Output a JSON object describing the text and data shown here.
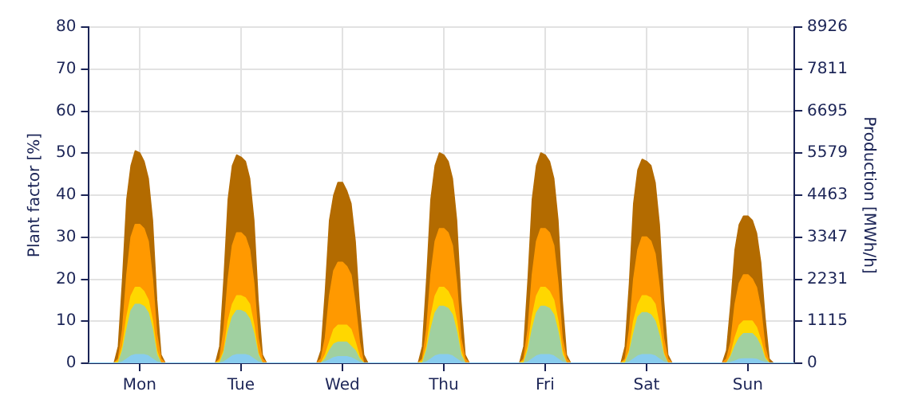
{
  "chart_data": {
    "type": "area",
    "ylabel": "Plant factor [%]",
    "y2label": "Production [MWh/h]",
    "categories": [
      null,
      null,
      null,
      null,
      null,
      null,
      null,
      null,
      null,
      null,
      null,
      null,
      "Mon",
      null,
      null,
      null,
      null,
      null,
      null,
      null,
      null,
      null,
      null,
      null,
      null,
      null,
      null,
      null,
      null,
      null,
      null,
      null,
      null,
      null,
      null,
      null,
      "Tue",
      null,
      null,
      null,
      null,
      null,
      null,
      null,
      null,
      null,
      null,
      null,
      null,
      null,
      null,
      null,
      null,
      null,
      null,
      null,
      null,
      null,
      null,
      null,
      "Wed",
      null,
      null,
      null,
      null,
      null,
      null,
      null,
      null,
      null,
      null,
      null,
      null,
      null,
      null,
      null,
      null,
      null,
      null,
      null,
      null,
      null,
      null,
      null,
      "Thu",
      null,
      null,
      null,
      null,
      null,
      null,
      null,
      null,
      null,
      null,
      null,
      null,
      null,
      null,
      null,
      null,
      null,
      null,
      null,
      null,
      null,
      null,
      null,
      "Fri",
      null,
      null,
      null,
      null,
      null,
      null,
      null,
      null,
      null,
      null,
      null,
      null,
      null,
      null,
      null,
      null,
      null,
      null,
      null,
      null,
      null,
      null,
      null,
      "Sat",
      null,
      null,
      null,
      null,
      null,
      null,
      null,
      null,
      null,
      null,
      null,
      null,
      null,
      null,
      null,
      null,
      null,
      null,
      null,
      null,
      null,
      null,
      null,
      "Sun",
      null,
      null,
      null,
      null,
      null,
      null,
      null,
      null,
      null,
      null,
      null
    ],
    "series": [
      {
        "color": "#b36b00",
        "values": [
          0,
          0,
          0,
          0,
          0,
          0,
          0,
          4,
          20,
          39,
          47,
          50.5,
          50,
          48,
          44,
          34,
          15,
          2,
          0,
          0,
          0,
          0,
          0,
          0,
          0,
          0,
          0,
          0,
          0,
          0,
          0,
          4,
          20,
          39,
          47,
          49.5,
          49,
          48,
          44,
          34,
          15,
          2,
          0,
          0,
          0,
          0,
          0,
          0,
          0,
          0,
          0,
          0,
          0,
          0,
          0,
          3,
          17,
          34,
          40,
          43,
          43,
          41,
          38,
          29,
          13,
          2,
          0,
          0,
          0,
          0,
          0,
          0,
          0,
          0,
          0,
          0,
          0,
          0,
          0,
          4,
          20,
          39,
          47,
          50,
          49.5,
          48,
          44,
          34,
          15,
          2,
          0,
          0,
          0,
          0,
          0,
          0,
          0,
          0,
          0,
          0,
          0,
          0,
          0,
          4,
          20,
          39,
          47,
          50,
          49.5,
          48,
          44,
          34,
          15,
          2,
          0,
          0,
          0,
          0,
          0,
          0,
          0,
          0,
          0,
          0,
          0,
          0,
          0,
          4,
          19,
          38,
          46,
          48.5,
          48,
          47,
          43,
          33,
          15,
          2,
          0,
          0,
          0,
          0,
          0,
          0,
          0,
          0,
          0,
          0,
          0,
          0,
          0,
          3,
          14,
          27,
          33,
          35,
          35,
          34,
          31,
          24,
          11,
          1,
          0,
          0,
          0,
          0,
          0,
          0
        ]
      },
      {
        "color": "#ff9900",
        "values": [
          0,
          0,
          0,
          0,
          0,
          0,
          0,
          1,
          8,
          21,
          30,
          33,
          33,
          32,
          29,
          20,
          7,
          1,
          0,
          0,
          0,
          0,
          0,
          0,
          0,
          0,
          0,
          0,
          0,
          0,
          0,
          1,
          8,
          20,
          28,
          31,
          31,
          30,
          27,
          19,
          6,
          1,
          0,
          0,
          0,
          0,
          0,
          0,
          0,
          0,
          0,
          0,
          0,
          0,
          0,
          1,
          6,
          16,
          22,
          24,
          24,
          23,
          21,
          14,
          5,
          0,
          0,
          0,
          0,
          0,
          0,
          0,
          0,
          0,
          0,
          0,
          0,
          0,
          0,
          1,
          8,
          21,
          29,
          32,
          32,
          31,
          28,
          19,
          6,
          1,
          0,
          0,
          0,
          0,
          0,
          0,
          0,
          0,
          0,
          0,
          0,
          0,
          0,
          1,
          8,
          21,
          29,
          32,
          32,
          31,
          28,
          19,
          6,
          1,
          0,
          0,
          0,
          0,
          0,
          0,
          0,
          0,
          0,
          0,
          0,
          0,
          0,
          1,
          8,
          20,
          27,
          30,
          30,
          29,
          26,
          18,
          6,
          1,
          0,
          0,
          0,
          0,
          0,
          0,
          0,
          0,
          0,
          0,
          0,
          0,
          0,
          1,
          5,
          14,
          19,
          21,
          21,
          20,
          18,
          13,
          4,
          0,
          0,
          0,
          0,
          0,
          0,
          0
        ]
      },
      {
        "color": "#ffd700",
        "values": [
          0,
          0,
          0,
          0,
          0,
          0,
          0,
          0.5,
          4,
          11,
          16,
          18,
          18,
          17,
          15,
          10,
          3,
          0,
          0,
          0,
          0,
          0,
          0,
          0,
          0,
          0,
          0,
          0,
          0,
          0,
          0,
          0.5,
          3,
          10,
          14,
          16,
          16,
          15.5,
          14,
          9,
          2.5,
          0,
          0,
          0,
          0,
          0,
          0,
          0,
          0,
          0,
          0,
          0,
          0,
          0,
          0,
          0,
          2,
          5,
          8,
          9,
          9,
          9,
          8,
          5,
          1.5,
          0,
          0,
          0,
          0,
          0,
          0,
          0,
          0,
          0,
          0,
          0,
          0,
          0,
          0,
          0.5,
          4,
          11,
          16,
          18,
          18,
          17,
          15,
          10,
          3,
          0,
          0,
          0,
          0,
          0,
          0,
          0,
          0,
          0,
          0,
          0,
          0,
          0,
          0,
          0.5,
          4,
          11,
          16,
          18,
          18,
          17,
          15,
          10,
          3,
          0,
          0,
          0,
          0,
          0,
          0,
          0,
          0,
          0,
          0,
          0,
          0,
          0,
          0,
          0.5,
          3,
          10,
          14,
          16,
          16,
          15.5,
          14,
          9,
          2.5,
          0,
          0,
          0,
          0,
          0,
          0,
          0,
          0,
          0,
          0,
          0,
          0,
          0,
          0,
          0,
          2,
          6,
          9,
          10,
          10,
          10,
          8.5,
          5.5,
          1.5,
          0,
          0,
          0,
          0,
          0,
          0,
          0
        ]
      },
      {
        "color": "#a0d0a0",
        "values": [
          0,
          0,
          0,
          0,
          0,
          0,
          0,
          0,
          3,
          8,
          12.5,
          14,
          14,
          13.5,
          12,
          8,
          2,
          0,
          0,
          0,
          0,
          0,
          0,
          0,
          0,
          0,
          0,
          0,
          0,
          0,
          0,
          0,
          2.5,
          7.5,
          11,
          12.5,
          12.5,
          12,
          10.5,
          7,
          2,
          0,
          0,
          0,
          0,
          0,
          0,
          0,
          0,
          0,
          0,
          0,
          0,
          0,
          0,
          0,
          1,
          3,
          4.5,
          5,
          5,
          5,
          4,
          3,
          1,
          0,
          0,
          0,
          0,
          0,
          0,
          0,
          0,
          0,
          0,
          0,
          0,
          0,
          0,
          0,
          3,
          8,
          12,
          13.5,
          13.5,
          13,
          11.5,
          7.5,
          2,
          0,
          0,
          0,
          0,
          0,
          0,
          0,
          0,
          0,
          0,
          0,
          0,
          0,
          0,
          0,
          3,
          8,
          12,
          13.5,
          13.5,
          13,
          11.5,
          7.5,
          2,
          0,
          0,
          0,
          0,
          0,
          0,
          0,
          0,
          0,
          0,
          0,
          0,
          0,
          0,
          0,
          2.5,
          7,
          11,
          12,
          12,
          11.5,
          10,
          6.5,
          2,
          0,
          0,
          0,
          0,
          0,
          0,
          0,
          0,
          0,
          0,
          0,
          0,
          0,
          0,
          0,
          1.5,
          4,
          6,
          7,
          7,
          7,
          6,
          4,
          1,
          0,
          0,
          0,
          0,
          0,
          0,
          0
        ]
      },
      {
        "color": "#88ccee",
        "values": [
          0,
          0,
          0,
          0,
          0,
          0,
          0,
          0,
          0.3,
          1,
          1.7,
          2,
          2,
          2,
          1.7,
          1,
          0.3,
          0,
          0,
          0,
          0,
          0,
          0,
          0,
          0,
          0,
          0,
          0,
          0,
          0,
          0,
          0,
          0.3,
          1,
          1.7,
          2,
          2,
          2,
          1.7,
          1,
          0.3,
          0,
          0,
          0,
          0,
          0,
          0,
          0,
          0,
          0,
          0,
          0,
          0,
          0,
          0,
          0,
          0.3,
          0.8,
          1.3,
          1.5,
          1.5,
          1.5,
          1.3,
          0.8,
          0.2,
          0,
          0,
          0,
          0,
          0,
          0,
          0,
          0,
          0,
          0,
          0,
          0,
          0,
          0,
          0,
          0.3,
          1,
          1.7,
          2,
          2,
          2,
          1.7,
          1,
          0.3,
          0,
          0,
          0,
          0,
          0,
          0,
          0,
          0,
          0,
          0,
          0,
          0,
          0,
          0,
          0,
          0.3,
          1,
          1.7,
          2,
          2,
          2,
          1.7,
          1,
          0.3,
          0,
          0,
          0,
          0,
          0,
          0,
          0,
          0,
          0,
          0,
          0,
          0,
          0,
          0,
          0,
          0.3,
          1,
          1.7,
          2,
          2,
          2,
          1.7,
          1,
          0.3,
          0,
          0,
          0,
          0,
          0,
          0,
          0,
          0,
          0,
          0,
          0,
          0,
          0,
          0,
          0,
          0.2,
          0.5,
          0.9,
          1,
          1,
          1,
          0.9,
          0.5,
          0.2,
          0,
          0,
          0,
          0,
          0,
          0,
          0
        ]
      }
    ],
    "ylim": [
      0,
      80
    ],
    "yticks": [
      0,
      10,
      20,
      30,
      40,
      50,
      60,
      70,
      80
    ],
    "y2lim": [
      0,
      8926
    ],
    "y2ticks": [
      0,
      1115,
      2231,
      3347,
      4463,
      5579,
      6695,
      7811,
      8926
    ],
    "grid": true,
    "legend": false
  }
}
